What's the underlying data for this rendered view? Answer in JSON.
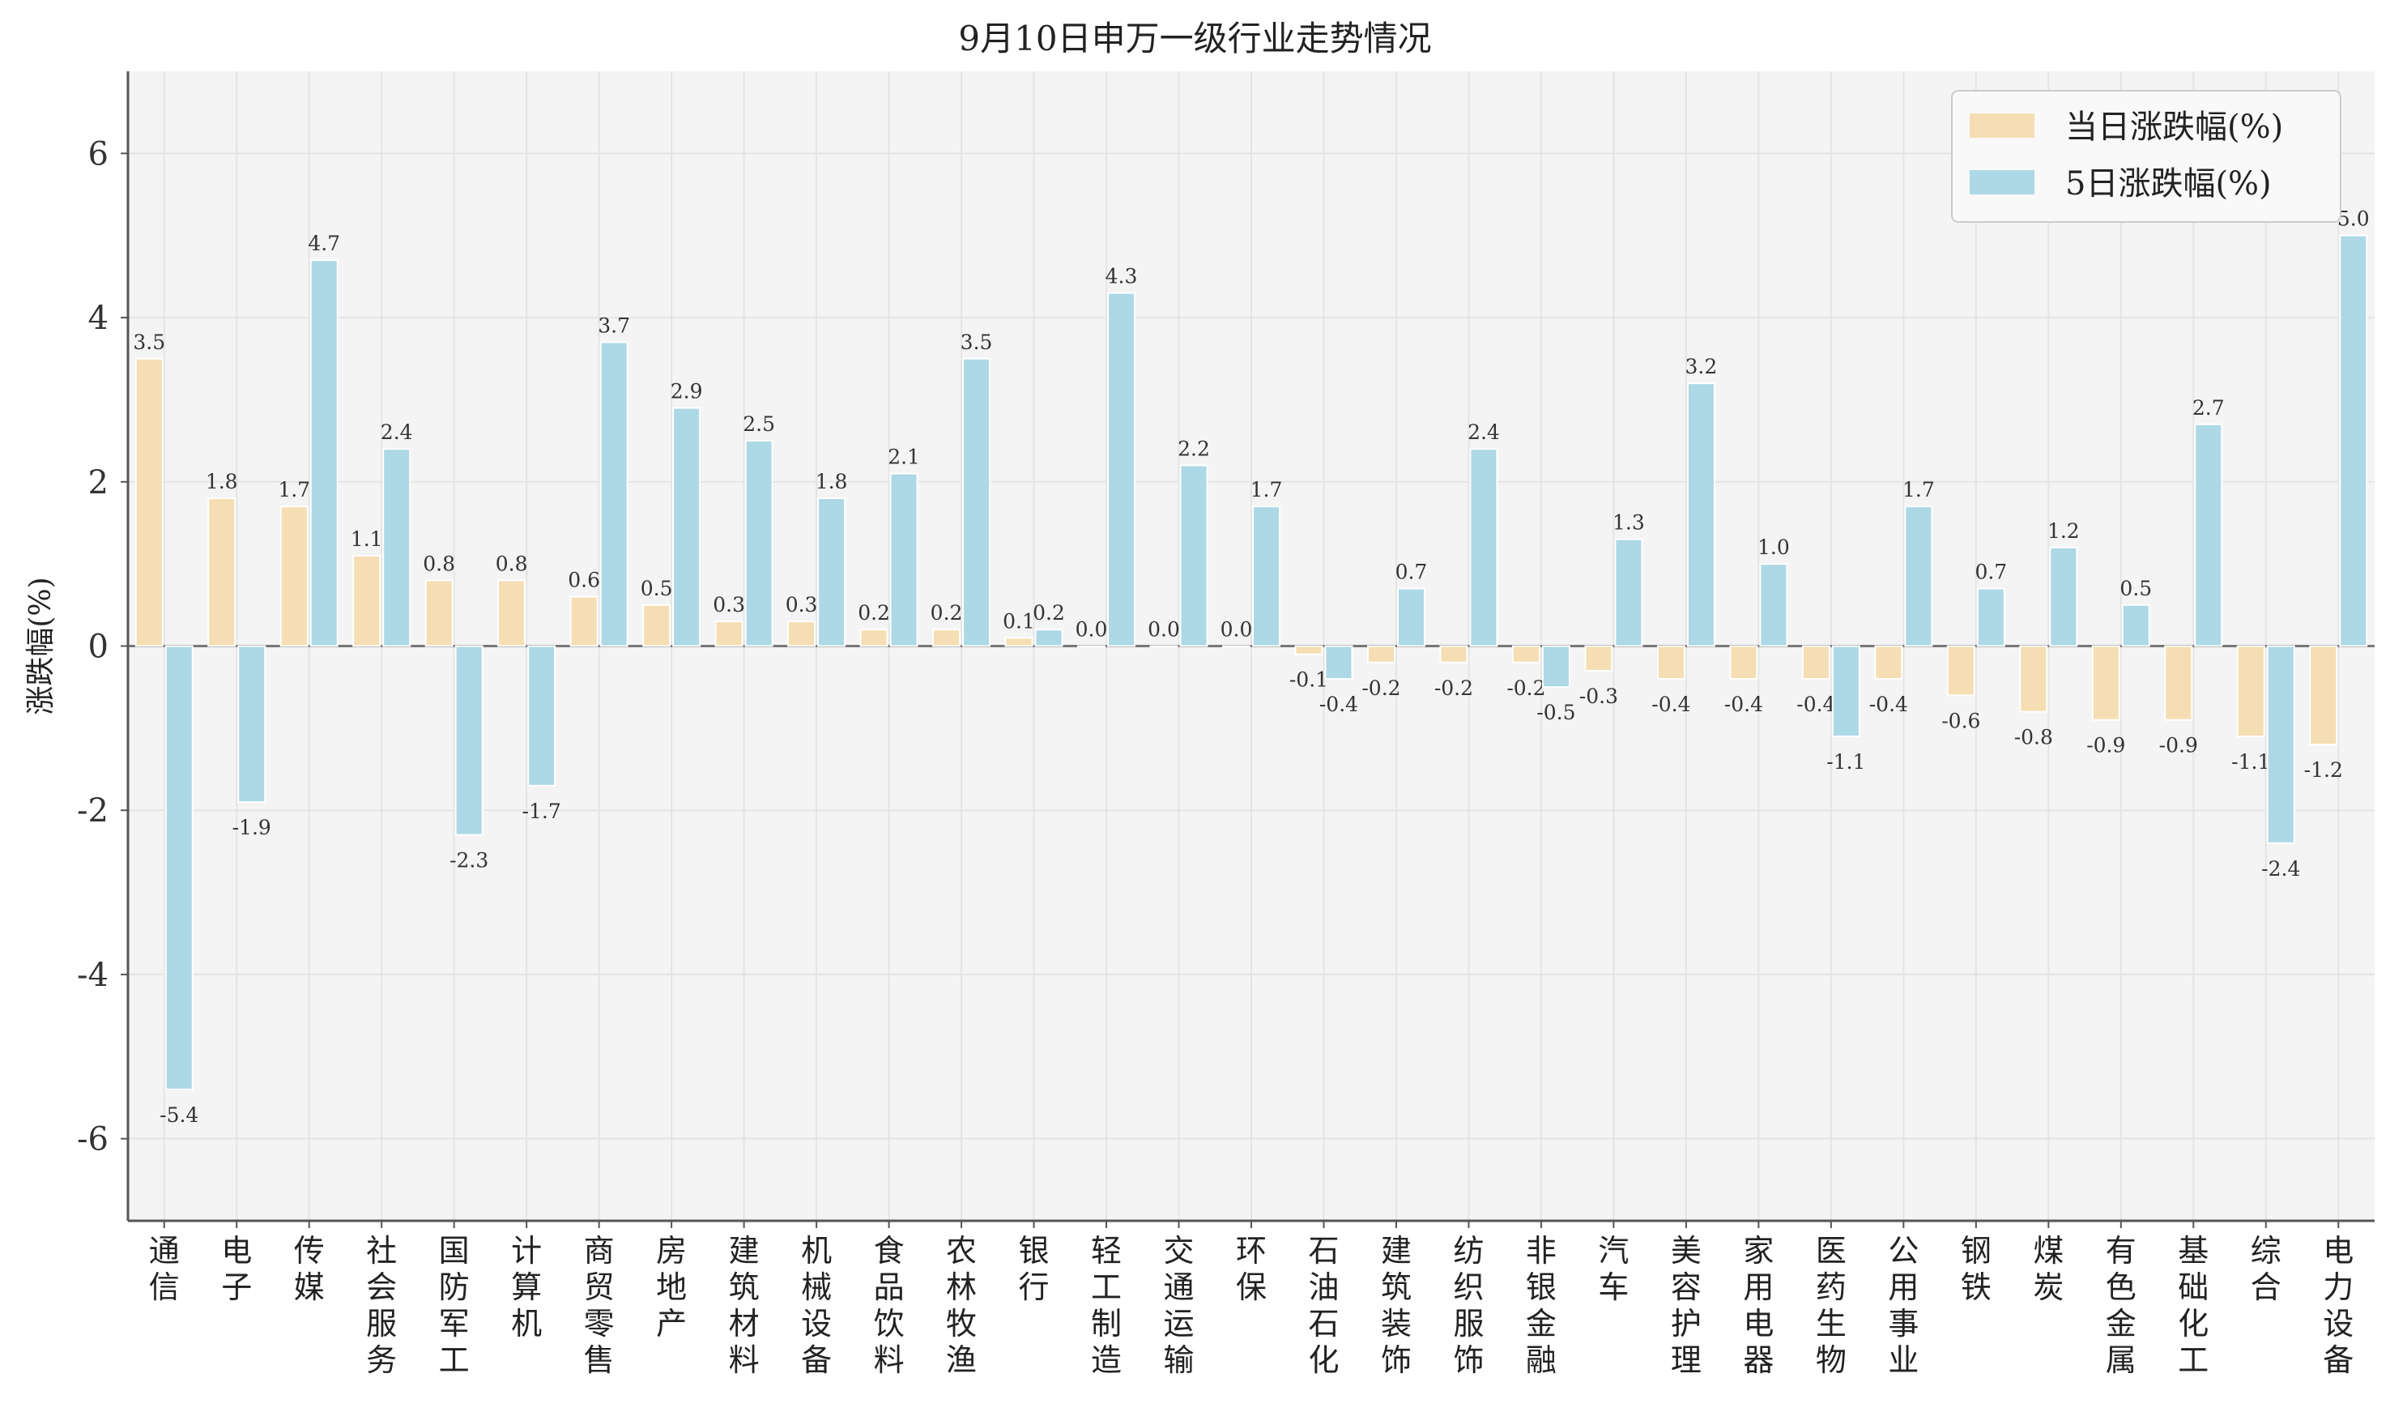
{
  "chart_data": {
    "type": "bar",
    "title": "9月10日申万一级行业走势情况",
    "ylabel": "涨跌幅(%)",
    "xlabel": "",
    "ylim": [
      -7,
      7
    ],
    "yticks": [
      -6,
      -4,
      -2,
      0,
      2,
      4,
      6
    ],
    "grid": true,
    "legend_position": "top-right",
    "categories": [
      "通信",
      "电子",
      "传媒",
      "社会服务",
      "国防军工",
      "计算机",
      "商贸零售",
      "房地产",
      "建筑材料",
      "机械设备",
      "食品饮料",
      "农林牧渔",
      "银行",
      "轻工制造",
      "交通运输",
      "环保",
      "石油石化",
      "建筑装饰",
      "纺织服饰",
      "非银金融",
      "汽车",
      "美容护理",
      "家用电器",
      "医药生物",
      "公用事业",
      "钢铁",
      "煤炭",
      "有色金属",
      "基础化工",
      "综合",
      "电力设备"
    ],
    "series": [
      {
        "name": "当日涨跌幅(%)",
        "color": "#f5deb3",
        "values": [
          3.5,
          1.8,
          1.7,
          1.1,
          0.8,
          0.8,
          0.6,
          0.5,
          0.3,
          0.3,
          0.2,
          0.2,
          0.1,
          0.0,
          0.0,
          0.0,
          -0.1,
          -0.2,
          -0.2,
          -0.2,
          -0.3,
          -0.4,
          -0.4,
          -0.4,
          -0.4,
          -0.6,
          -0.8,
          -0.9,
          -0.9,
          -1.1,
          -1.2
        ]
      },
      {
        "name": "5日涨跌幅(%)",
        "color": "#add8e6",
        "values": [
          -5.4,
          -1.9,
          4.7,
          2.4,
          -2.3,
          -1.7,
          3.7,
          2.9,
          2.5,
          1.8,
          2.1,
          3.5,
          0.2,
          4.3,
          2.2,
          1.7,
          -0.4,
          0.7,
          2.4,
          -0.5,
          1.3,
          3.2,
          1.0,
          -1.1,
          1.7,
          0.7,
          1.2,
          0.5,
          2.7,
          -2.4,
          5.0
        ]
      }
    ]
  }
}
